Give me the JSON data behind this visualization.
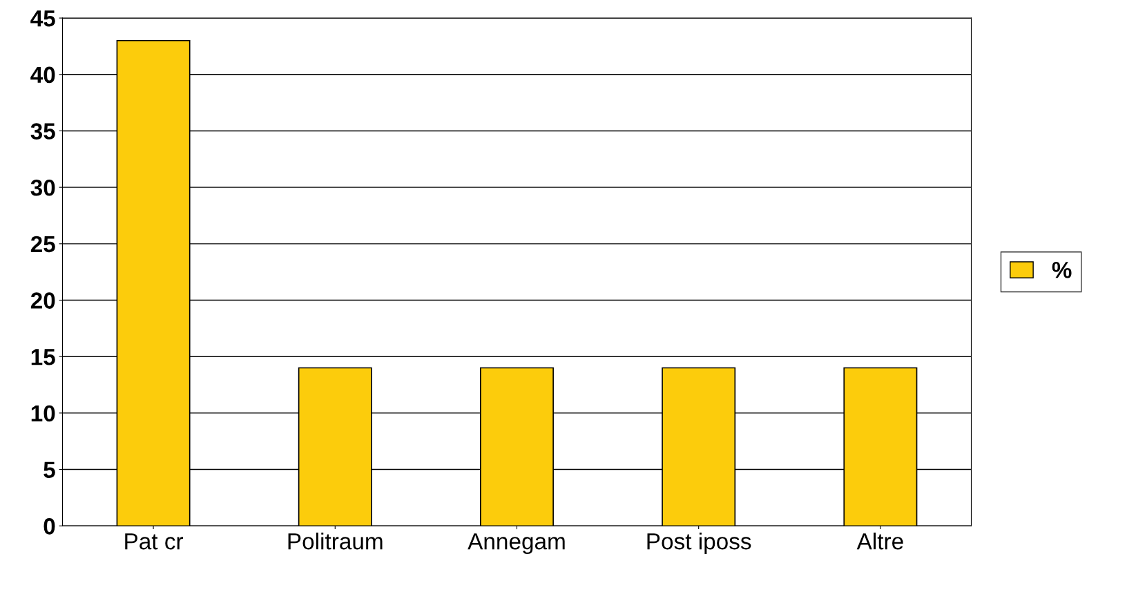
{
  "chart_data": {
    "type": "bar",
    "categories": [
      "Pat cr",
      "Politraum",
      "Annegam",
      "Post iposs",
      "Altre"
    ],
    "series": [
      {
        "name": "%",
        "color": "#fccc0c",
        "values": [
          43,
          14,
          14,
          14,
          14
        ]
      }
    ],
    "ylim": [
      0,
      45
    ],
    "yticks": [
      0,
      5,
      10,
      15,
      20,
      25,
      30,
      35,
      40,
      45
    ],
    "grid": "y",
    "legend": "right"
  }
}
